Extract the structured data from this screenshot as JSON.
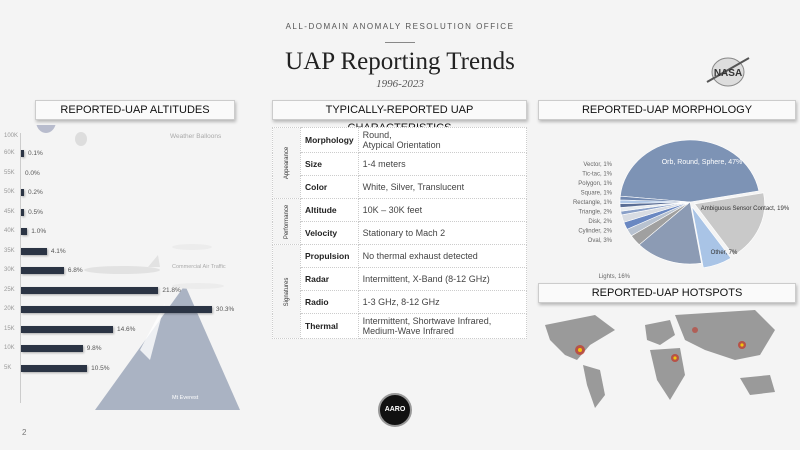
{
  "header": {
    "office": "ALL-DOMAIN ANOMALY RESOLUTION OFFICE",
    "title": "UAP Reporting Trends",
    "years": "1996-2023",
    "logo": "NASA"
  },
  "altitudes": {
    "title": "REPORTED-UAP ALTITUDES",
    "top_label": "100K",
    "balloon_label": "Weather Balloons",
    "air_traffic_label": "Commercial Air Traffic",
    "mountain_label": "Mt Everest",
    "bars": [
      {
        "alt": "60K",
        "value": 0.1,
        "label": "0.1%"
      },
      {
        "alt": "55K",
        "value": 0.0,
        "label": "0.0%"
      },
      {
        "alt": "50K",
        "value": 0.2,
        "label": "0.2%"
      },
      {
        "alt": "45K",
        "value": 0.5,
        "label": "0.5%"
      },
      {
        "alt": "40K",
        "value": 1.0,
        "label": "1.0%"
      },
      {
        "alt": "35K",
        "value": 4.1,
        "label": "4.1%"
      },
      {
        "alt": "30K",
        "value": 6.8,
        "label": "6.8%"
      },
      {
        "alt": "25K",
        "value": 21.8,
        "label": "21.8%"
      },
      {
        "alt": "20K",
        "value": 30.3,
        "label": "30.3%"
      },
      {
        "alt": "15K",
        "value": 14.6,
        "label": "14.6%"
      },
      {
        "alt": "10K",
        "value": 9.8,
        "label": "9.8%"
      },
      {
        "alt": "5K",
        "value": 10.5,
        "label": "10.5%"
      }
    ]
  },
  "characteristics": {
    "title": "TYPICALLY-REPORTED UAP CHARACTERISTICS",
    "groups": [
      {
        "name": "Appearance",
        "rows": [
          [
            "Morphology",
            "Round,\nAtypical Orientation"
          ],
          [
            "Size",
            "1-4 meters"
          ],
          [
            "Color",
            "White, Silver, Translucent"
          ]
        ]
      },
      {
        "name": "Performance",
        "rows": [
          [
            "Altitude",
            "10K – 30K feet"
          ],
          [
            "Velocity",
            "Stationary to Mach 2"
          ]
        ]
      },
      {
        "name": "Signatures",
        "rows": [
          [
            "Propulsion",
            "No thermal exhaust detected"
          ],
          [
            "Radar",
            "Intermittent, X-Band (8-12 GHz)"
          ],
          [
            "Radio",
            "1-3 GHz, 8-12 GHz"
          ],
          [
            "Thermal",
            "Intermittent, Shortwave Infrared,\nMedium-Wave Infrared"
          ]
        ]
      }
    ]
  },
  "morphology": {
    "title": "REPORTED-UAP MORPHOLOGY",
    "chart_data": {
      "type": "pie",
      "slices": [
        {
          "name": "Orb, Round, Sphere",
          "value": 47,
          "label": "Orb, Round, Sphere, 47%",
          "color": "#7d93b5"
        },
        {
          "name": "Ambiguous Sensor Contact",
          "value": 19,
          "label": "Ambiguous Sensor Contact, 19%",
          "color": "#c9c9c9"
        },
        {
          "name": "Other",
          "value": 7,
          "label": "Other, 7%",
          "color": "#a9c4e6"
        },
        {
          "name": "Lights",
          "value": 16,
          "label": "Lights, 16%",
          "color": "#8c9bb4"
        },
        {
          "name": "Oval",
          "value": 3,
          "label": "Oval, 3%",
          "color": "#a0a0a0"
        },
        {
          "name": "Cylinder",
          "value": 2,
          "label": "Cylinder, 2%",
          "color": "#b8c2d0"
        },
        {
          "name": "Disk",
          "value": 2,
          "label": "Disk, 2%",
          "color": "#6a88c2"
        },
        {
          "name": "Triangle",
          "value": 2,
          "label": "Triangle, 2%",
          "color": "#d8dce3"
        },
        {
          "name": "Rectangle",
          "value": 1,
          "label": "Rectangle, 1%",
          "color": "#8aa0c8"
        },
        {
          "name": "Square",
          "value": 1,
          "label": "Square, 1%",
          "color": "#e8ecf0"
        },
        {
          "name": "Polygon",
          "value": 1,
          "label": "Polygon, 1%",
          "color": "#5a6e96"
        },
        {
          "name": "Tic-tac",
          "value": 1,
          "label": "Tic-tac, 1%",
          "color": "#b0c8e8"
        },
        {
          "name": "Vector",
          "value": 1,
          "label": "Vector, 1%",
          "color": "#7088b0"
        }
      ]
    }
  },
  "hotspots": {
    "title": "REPORTED-UAP HOTSPOTS"
  },
  "footer": {
    "seal": "AARO",
    "page": "2"
  }
}
